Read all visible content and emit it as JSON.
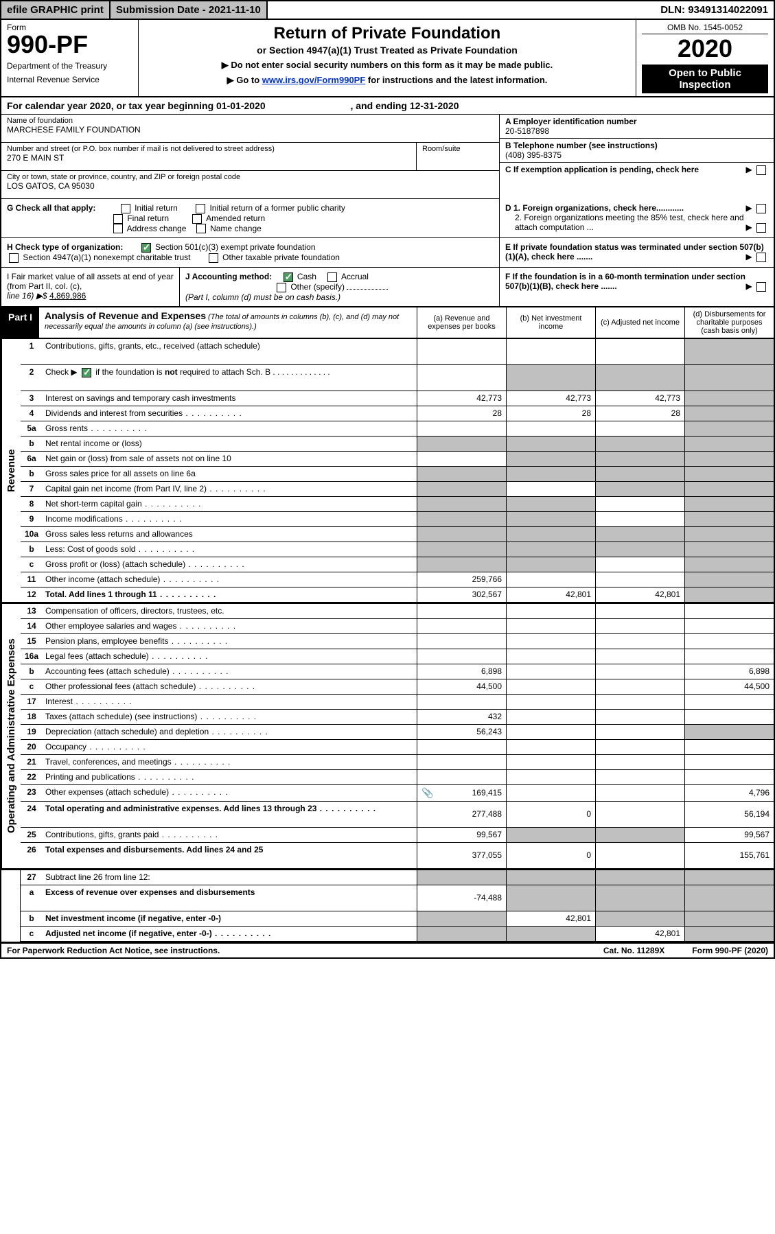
{
  "topbar": {
    "efile": "efile GRAPHIC print",
    "submission": "Submission Date - 2021-11-10",
    "dln": "DLN: 93491314022091"
  },
  "header": {
    "form_label": "Form",
    "form_num": "990-PF",
    "dept": "Department of the Treasury",
    "irs": "Internal Revenue Service",
    "title": "Return of Private Foundation",
    "subtitle": "or Section 4947(a)(1) Trust Treated as Private Foundation",
    "note1": "▶ Do not enter social security numbers on this form as it may be made public.",
    "note2_a": "▶ Go to ",
    "note2_link": "www.irs.gov/Form990PF",
    "note2_b": " for instructions and the latest information.",
    "omb": "OMB No. 1545-0052",
    "year": "2020",
    "open": "Open to Public Inspection"
  },
  "calyear": {
    "text_a": "For calendar year 2020, or tax year beginning 01-01-2020",
    "text_b": ", and ending 12-31-2020"
  },
  "info": {
    "name_label": "Name of foundation",
    "name": "MARCHESE FAMILY FOUNDATION",
    "addr_label": "Number and street (or P.O. box number if mail is not delivered to street address)",
    "addr": "270 E MAIN ST",
    "room_label": "Room/suite",
    "city_label": "City or town, state or province, country, and ZIP or foreign postal code",
    "city": "LOS GATOS, CA  95030",
    "a_label": "A Employer identification number",
    "a_val": "20-5187898",
    "b_label": "B Telephone number (see instructions)",
    "b_val": "(408) 395-8375",
    "c_label": "C If exemption application is pending, check here"
  },
  "g": {
    "label": "G Check all that apply:",
    "opts": [
      "Initial return",
      "Initial return of a former public charity",
      "Final return",
      "Amended return",
      "Address change",
      "Name change"
    ]
  },
  "d": {
    "d1": "D 1. Foreign organizations, check here............",
    "d2": "2. Foreign organizations meeting the 85% test, check here and attach computation ...",
    "e": "E  If private foundation status was terminated under section 507(b)(1)(A), check here .......",
    "f": "F  If the foundation is in a 60-month termination under section 507(b)(1)(B), check here ......."
  },
  "h": {
    "label": "H Check type of organization:",
    "opt1": "Section 501(c)(3) exempt private foundation",
    "opt2": "Section 4947(a)(1) nonexempt charitable trust",
    "opt3": "Other taxable private foundation"
  },
  "i": {
    "label_a": "I Fair market value of all assets at end of year (from Part II, col. (c),",
    "label_b": "line 16) ▶$ ",
    "val": "4,869,986"
  },
  "j": {
    "label": "J Accounting method:",
    "cash": "Cash",
    "accrual": "Accrual",
    "other": "Other (specify)",
    "note": "(Part I, column (d) must be on cash basis.)"
  },
  "part1": {
    "label": "Part I",
    "title": "Analysis of Revenue and Expenses",
    "italic": " (The total of amounts in columns (b), (c), and (d) may not necessarily equal the amounts in column (a) (see instructions).)",
    "col_a": "(a)   Revenue and expenses per books",
    "col_b": "(b)   Net investment income",
    "col_c": "(c)   Adjusted net income",
    "col_d": "(d)   Disbursements for charitable purposes (cash basis only)"
  },
  "side": {
    "revenue": "Revenue",
    "expenses": "Operating and Administrative Expenses"
  },
  "rows": [
    {
      "n": "1",
      "label": "Contributions, gifts, grants, etc., received (attach schedule)",
      "a": "",
      "b": "",
      "c": "",
      "d": "",
      "tall": true,
      "dg": true
    },
    {
      "n": "2",
      "label": "Check ▶ ☑ if the foundation is not required to attach Sch. B",
      "a": "",
      "b": "g",
      "c": "g",
      "d": "g",
      "tall": true,
      "check": true
    },
    {
      "n": "3",
      "label": "Interest on savings and temporary cash investments",
      "a": "42,773",
      "b": "42,773",
      "c": "42,773",
      "d": "g"
    },
    {
      "n": "4",
      "label": "Dividends and interest from securities",
      "a": "28",
      "b": "28",
      "c": "28",
      "d": "g",
      "dots": true
    },
    {
      "n": "5a",
      "label": "Gross rents",
      "a": "",
      "b": "",
      "c": "",
      "d": "g",
      "dots": true
    },
    {
      "n": "b",
      "label": "Net rental income or (loss)",
      "a": "g",
      "b": "g",
      "c": "g",
      "d": "g"
    },
    {
      "n": "6a",
      "label": "Net gain or (loss) from sale of assets not on line 10",
      "a": "",
      "b": "g",
      "c": "g",
      "d": "g"
    },
    {
      "n": "b",
      "label": "Gross sales price for all assets on line 6a",
      "a": "g",
      "b": "g",
      "c": "g",
      "d": "g"
    },
    {
      "n": "7",
      "label": "Capital gain net income (from Part IV, line 2)",
      "a": "g",
      "b": "",
      "c": "g",
      "d": "g",
      "dots": true
    },
    {
      "n": "8",
      "label": "Net short-term capital gain",
      "a": "g",
      "b": "g",
      "c": "",
      "d": "g",
      "dots": true
    },
    {
      "n": "9",
      "label": "Income modifications",
      "a": "g",
      "b": "g",
      "c": "",
      "d": "g",
      "dots": true
    },
    {
      "n": "10a",
      "label": "Gross sales less returns and allowances",
      "a": "g",
      "b": "g",
      "c": "g",
      "d": "g"
    },
    {
      "n": "b",
      "label": "Less: Cost of goods sold",
      "a": "g",
      "b": "g",
      "c": "g",
      "d": "g",
      "dots": true
    },
    {
      "n": "c",
      "label": "Gross profit or (loss) (attach schedule)",
      "a": "g",
      "b": "g",
      "c": "",
      "d": "g",
      "dots": true
    },
    {
      "n": "11",
      "label": "Other income (attach schedule)",
      "a": "259,766",
      "b": "",
      "c": "",
      "d": "g",
      "dots": true
    },
    {
      "n": "12",
      "label": "Total. Add lines 1 through 11",
      "a": "302,567",
      "b": "42,801",
      "c": "42,801",
      "d": "g",
      "bold": true,
      "dots": true
    }
  ],
  "exp_rows": [
    {
      "n": "13",
      "label": "Compensation of officers, directors, trustees, etc.",
      "a": "",
      "b": "",
      "c": "",
      "d": ""
    },
    {
      "n": "14",
      "label": "Other employee salaries and wages",
      "a": "",
      "b": "",
      "c": "",
      "d": "",
      "dots": true
    },
    {
      "n": "15",
      "label": "Pension plans, employee benefits",
      "a": "",
      "b": "",
      "c": "",
      "d": "",
      "dots": true
    },
    {
      "n": "16a",
      "label": "Legal fees (attach schedule)",
      "a": "",
      "b": "",
      "c": "",
      "d": "",
      "dots": true
    },
    {
      "n": "b",
      "label": "Accounting fees (attach schedule)",
      "a": "6,898",
      "b": "",
      "c": "",
      "d": "6,898",
      "dots": true
    },
    {
      "n": "c",
      "label": "Other professional fees (attach schedule)",
      "a": "44,500",
      "b": "",
      "c": "",
      "d": "44,500",
      "dots": true
    },
    {
      "n": "17",
      "label": "Interest",
      "a": "",
      "b": "",
      "c": "",
      "d": "",
      "dots": true
    },
    {
      "n": "18",
      "label": "Taxes (attach schedule) (see instructions)",
      "a": "432",
      "b": "",
      "c": "",
      "d": "",
      "dots": true
    },
    {
      "n": "19",
      "label": "Depreciation (attach schedule) and depletion",
      "a": "56,243",
      "b": "",
      "c": "",
      "d": "g",
      "dots": true
    },
    {
      "n": "20",
      "label": "Occupancy",
      "a": "",
      "b": "",
      "c": "",
      "d": "",
      "dots": true
    },
    {
      "n": "21",
      "label": "Travel, conferences, and meetings",
      "a": "",
      "b": "",
      "c": "",
      "d": "",
      "dots": true
    },
    {
      "n": "22",
      "label": "Printing and publications",
      "a": "",
      "b": "",
      "c": "",
      "d": "",
      "dots": true
    },
    {
      "n": "23",
      "label": "Other expenses (attach schedule)",
      "a": "169,415",
      "b": "",
      "c": "",
      "d": "4,796",
      "dots": true,
      "clip": true
    },
    {
      "n": "24",
      "label": "Total operating and administrative expenses. Add lines 13 through 23",
      "a": "277,488",
      "b": "0",
      "c": "",
      "d": "56,194",
      "bold": true,
      "tall": true,
      "dots": true
    },
    {
      "n": "25",
      "label": "Contributions, gifts, grants paid",
      "a": "99,567",
      "b": "g",
      "c": "g",
      "d": "99,567",
      "dots": true
    },
    {
      "n": "26",
      "label": "Total expenses and disbursements. Add lines 24 and 25",
      "a": "377,055",
      "b": "0",
      "c": "",
      "d": "155,761",
      "bold": true,
      "tall": true
    }
  ],
  "net_rows": [
    {
      "n": "27",
      "label": "Subtract line 26 from line 12:",
      "a": "g",
      "b": "g",
      "c": "g",
      "d": "g"
    },
    {
      "n": "a",
      "label": "Excess of revenue over expenses and disbursements",
      "a": "-74,488",
      "b": "g",
      "c": "g",
      "d": "g",
      "bold": true,
      "tall": true
    },
    {
      "n": "b",
      "label": "Net investment income (if negative, enter -0-)",
      "a": "g",
      "b": "42,801",
      "c": "g",
      "d": "g",
      "bold": true
    },
    {
      "n": "c",
      "label": "Adjusted net income (if negative, enter -0-)",
      "a": "g",
      "b": "g",
      "c": "42,801",
      "d": "g",
      "bold": true,
      "dots": true
    }
  ],
  "footer": {
    "left": "For Paperwork Reduction Act Notice, see instructions.",
    "mid": "Cat. No. 11289X",
    "right": "Form 990-PF (2020)"
  }
}
